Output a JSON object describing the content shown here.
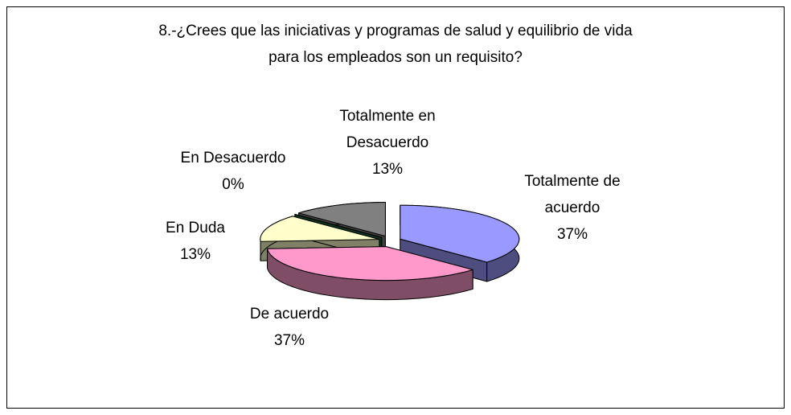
{
  "chart_data": {
    "type": "pie3d",
    "title": [
      "8.-¿Crees que las iniciativas y programas de salud y equilibrio de vida",
      "para los empleados son un requisito?"
    ],
    "categories": [
      "Totalmente de acuerdo",
      "De acuerdo",
      "En Duda",
      "En Desacuerdo",
      "Totalmente en Desacuerdo"
    ],
    "values": [
      37,
      37,
      13,
      0,
      13
    ],
    "value_labels": [
      "37%",
      "37%",
      "13%",
      "0%",
      "13%"
    ],
    "colors": [
      "#9999ff",
      "#ff99cc",
      "#ffffcc",
      "#1f6b3a",
      "#808080"
    ]
  }
}
